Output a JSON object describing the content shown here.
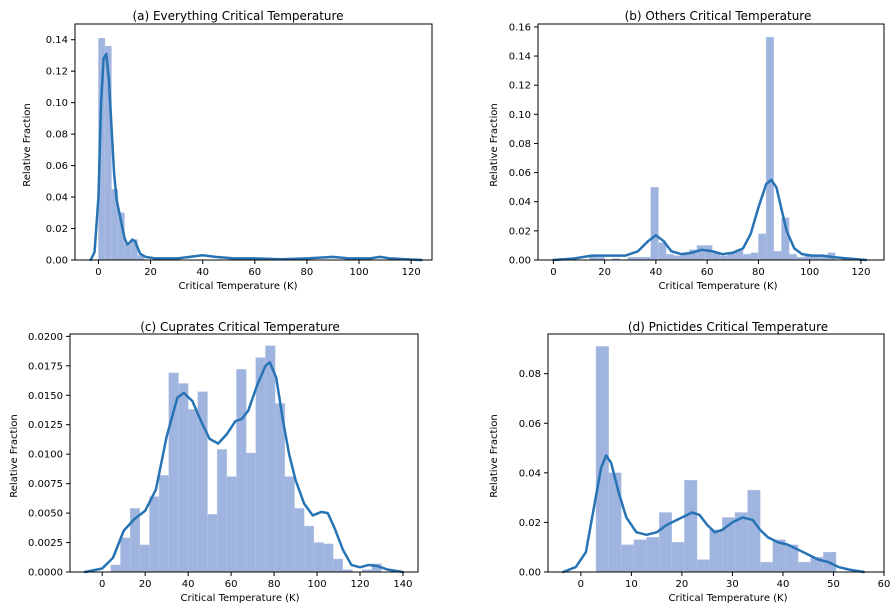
{
  "colors": {
    "bar": "#9fb4df",
    "kde": "#2773b3",
    "axis": "#000000"
  },
  "chart_data": [
    {
      "id": "a",
      "type": "bar",
      "title": "(a) Everything Critical Temperature",
      "xlabel": "Critical Temperature (K)",
      "ylabel": "Relative Fraction",
      "xlim": [
        -9,
        128
      ],
      "ylim": [
        0,
        0.15
      ],
      "xticks": [
        0,
        20,
        40,
        60,
        80,
        100,
        120
      ],
      "yticks": [
        0.0,
        0.02,
        0.04,
        0.06,
        0.08,
        0.1,
        0.12,
        0.14
      ],
      "ytick_decimals": 2,
      "bin_width": 2.5,
      "bins": [
        [
          0,
          0.141
        ],
        [
          2.5,
          0.136
        ],
        [
          5,
          0.045
        ],
        [
          7.5,
          0.03
        ],
        [
          10,
          0.01
        ],
        [
          12.5,
          0.013
        ],
        [
          15,
          0.003
        ]
      ],
      "kde": [
        [
          -3,
          0
        ],
        [
          -1.5,
          0.005
        ],
        [
          0,
          0.04
        ],
        [
          1,
          0.1
        ],
        [
          2,
          0.128
        ],
        [
          3,
          0.131
        ],
        [
          4,
          0.115
        ],
        [
          5,
          0.085
        ],
        [
          6,
          0.055
        ],
        [
          7,
          0.038
        ],
        [
          8,
          0.03
        ],
        [
          9,
          0.022
        ],
        [
          10,
          0.014
        ],
        [
          11,
          0.01
        ],
        [
          12,
          0.011
        ],
        [
          13,
          0.013
        ],
        [
          14,
          0.012
        ],
        [
          15,
          0.008
        ],
        [
          16,
          0.004
        ],
        [
          18,
          0.002
        ],
        [
          22,
          0.001
        ],
        [
          30,
          0.001
        ],
        [
          35,
          0.002
        ],
        [
          40,
          0.003
        ],
        [
          45,
          0.002
        ],
        [
          52,
          0.001
        ],
        [
          60,
          0.001
        ],
        [
          70,
          0.0005
        ],
        [
          80,
          0.001
        ],
        [
          90,
          0.002
        ],
        [
          96,
          0.001
        ],
        [
          104,
          0.001
        ],
        [
          108,
          0.002
        ],
        [
          112,
          0.001
        ],
        [
          118,
          0.0005
        ],
        [
          124,
          0
        ]
      ]
    },
    {
      "id": "b",
      "type": "bar",
      "title": "(b) Others Critical Temperature",
      "xlabel": "Critical Temperature (K)",
      "ylabel": "Relative Fraction",
      "xlim": [
        -6,
        129
      ],
      "ylim": [
        0,
        0.162
      ],
      "xticks": [
        0,
        20,
        40,
        60,
        80,
        100,
        120
      ],
      "yticks": [
        0.0,
        0.02,
        0.04,
        0.06,
        0.08,
        0.1,
        0.12,
        0.14,
        0.16
      ],
      "ytick_decimals": 2,
      "bin_width": 3,
      "bins": [
        [
          14,
          0.003
        ],
        [
          17,
          0.002
        ],
        [
          23,
          0.001
        ],
        [
          29,
          0.002
        ],
        [
          32,
          0.002
        ],
        [
          35,
          0.002
        ],
        [
          38,
          0.05
        ],
        [
          41,
          0.012
        ],
        [
          44,
          0.004
        ],
        [
          47,
          0.003
        ],
        [
          50,
          0.004
        ],
        [
          53,
          0.007
        ],
        [
          56,
          0.01
        ],
        [
          59,
          0.01
        ],
        [
          62,
          0.005
        ],
        [
          65,
          0.003
        ],
        [
          68,
          0.005
        ],
        [
          71,
          0.007
        ],
        [
          74,
          0.004
        ],
        [
          77,
          0.005
        ],
        [
          80,
          0.018
        ],
        [
          83,
          0.153
        ],
        [
          86,
          0.006
        ],
        [
          89,
          0.029
        ],
        [
          92,
          0.004
        ],
        [
          95,
          0.002
        ],
        [
          98,
          0.003
        ],
        [
          101,
          0.003
        ],
        [
          104,
          0.003
        ],
        [
          107,
          0.005
        ]
      ],
      "kde": [
        [
          0,
          0
        ],
        [
          8,
          0.001
        ],
        [
          15,
          0.003
        ],
        [
          22,
          0.003
        ],
        [
          28,
          0.003
        ],
        [
          33,
          0.006
        ],
        [
          37,
          0.013
        ],
        [
          40,
          0.017
        ],
        [
          43,
          0.013
        ],
        [
          46,
          0.006
        ],
        [
          50,
          0.004
        ],
        [
          54,
          0.005
        ],
        [
          58,
          0.007
        ],
        [
          62,
          0.006
        ],
        [
          66,
          0.004
        ],
        [
          70,
          0.005
        ],
        [
          74,
          0.008
        ],
        [
          77,
          0.018
        ],
        [
          80,
          0.036
        ],
        [
          83,
          0.052
        ],
        [
          85,
          0.055
        ],
        [
          87,
          0.05
        ],
        [
          89,
          0.035
        ],
        [
          91,
          0.02
        ],
        [
          94,
          0.008
        ],
        [
          97,
          0.004
        ],
        [
          101,
          0.003
        ],
        [
          105,
          0.003
        ],
        [
          109,
          0.002
        ],
        [
          115,
          0.001
        ],
        [
          122,
          0
        ]
      ]
    },
    {
      "id": "c",
      "type": "bar",
      "title": "(c) Cuprates Critical Temperature",
      "xlabel": "Critical Temperature (K)",
      "ylabel": "Relative Fraction",
      "xlim": [
        -15,
        147
      ],
      "ylim": [
        0,
        0.0202
      ],
      "xticks": [
        0,
        20,
        40,
        60,
        80,
        100,
        120,
        140
      ],
      "yticks": [
        0.0,
        0.0025,
        0.005,
        0.0075,
        0.01,
        0.0125,
        0.015,
        0.0175,
        0.02
      ],
      "ytick_decimals": 4,
      "bin_width": 4.5,
      "bins": [
        [
          4,
          0.0006
        ],
        [
          8.5,
          0.0029
        ],
        [
          13,
          0.0054
        ],
        [
          17.5,
          0.0023
        ],
        [
          22,
          0.0064
        ],
        [
          26.5,
          0.0082
        ],
        [
          31,
          0.0169
        ],
        [
          35.5,
          0.016
        ],
        [
          40,
          0.0138
        ],
        [
          44.5,
          0.0153
        ],
        [
          49,
          0.0049
        ],
        [
          53.5,
          0.0104
        ],
        [
          58,
          0.0081
        ],
        [
          62.5,
          0.0172
        ],
        [
          67,
          0.0101
        ],
        [
          71.5,
          0.0182
        ],
        [
          76,
          0.0192
        ],
        [
          80.5,
          0.0143
        ],
        [
          85,
          0.0081
        ],
        [
          89.5,
          0.0054
        ],
        [
          94,
          0.0039
        ],
        [
          98.5,
          0.0025
        ],
        [
          103,
          0.0024
        ],
        [
          107.5,
          0.0011
        ],
        [
          112,
          0.0002
        ],
        [
          121,
          0.0002
        ],
        [
          125.5,
          0.0007
        ]
      ],
      "kde": [
        [
          -8,
          0
        ],
        [
          0,
          0.0003
        ],
        [
          5,
          0.0012
        ],
        [
          10,
          0.0035
        ],
        [
          15,
          0.0045
        ],
        [
          20,
          0.0052
        ],
        [
          25,
          0.007
        ],
        [
          30,
          0.0115
        ],
        [
          35,
          0.0148
        ],
        [
          38,
          0.0152
        ],
        [
          42,
          0.0145
        ],
        [
          46,
          0.0128
        ],
        [
          50,
          0.0113
        ],
        [
          54,
          0.0109
        ],
        [
          58,
          0.0117
        ],
        [
          62,
          0.0128
        ],
        [
          65,
          0.013
        ],
        [
          68,
          0.0137
        ],
        [
          72,
          0.0158
        ],
        [
          76,
          0.0175
        ],
        [
          78,
          0.0178
        ],
        [
          81,
          0.0165
        ],
        [
          84,
          0.013
        ],
        [
          87,
          0.01
        ],
        [
          90,
          0.0078
        ],
        [
          94,
          0.0058
        ],
        [
          98,
          0.0048
        ],
        [
          102,
          0.0051
        ],
        [
          105,
          0.005
        ],
        [
          108,
          0.0038
        ],
        [
          112,
          0.0019
        ],
        [
          116,
          0.0006
        ],
        [
          120,
          0.0004
        ],
        [
          124,
          0.0006
        ],
        [
          128,
          0.0005
        ],
        [
          133,
          0.0002
        ],
        [
          140,
          0
        ]
      ]
    },
    {
      "id": "d",
      "type": "bar",
      "title": "(d) Pnictides Critical Temperature",
      "xlabel": "Critical Temperature (K)",
      "ylabel": "Relative Fraction",
      "xlim": [
        -6.5,
        60
      ],
      "ylim": [
        0,
        0.096
      ],
      "xticks": [
        0,
        10,
        20,
        30,
        40,
        50,
        60
      ],
      "yticks": [
        0.0,
        0.02,
        0.04,
        0.06,
        0.08
      ],
      "ytick_decimals": 2,
      "bin_width": 2.5,
      "bins": [
        [
          3,
          0.091
        ],
        [
          5.5,
          0.04
        ],
        [
          8,
          0.011
        ],
        [
          10.5,
          0.013
        ],
        [
          13,
          0.014
        ],
        [
          15.5,
          0.024
        ],
        [
          18,
          0.012
        ],
        [
          20.5,
          0.037
        ],
        [
          23,
          0.005
        ],
        [
          25.5,
          0.017
        ],
        [
          28,
          0.022
        ],
        [
          30.5,
          0.024
        ],
        [
          33,
          0.033
        ],
        [
          35.5,
          0.004
        ],
        [
          38,
          0.013
        ],
        [
          40.5,
          0.011
        ],
        [
          43,
          0.004
        ],
        [
          45.5,
          0.006
        ],
        [
          48,
          0.008
        ]
      ],
      "kde": [
        [
          -3.5,
          0
        ],
        [
          -1,
          0.002
        ],
        [
          1,
          0.008
        ],
        [
          2.5,
          0.025
        ],
        [
          4,
          0.042
        ],
        [
          5,
          0.047
        ],
        [
          6,
          0.044
        ],
        [
          7.5,
          0.032
        ],
        [
          9,
          0.022
        ],
        [
          11,
          0.016
        ],
        [
          13,
          0.015
        ],
        [
          15,
          0.016
        ],
        [
          17,
          0.019
        ],
        [
          20,
          0.022
        ],
        [
          22,
          0.024
        ],
        [
          23.5,
          0.023
        ],
        [
          25,
          0.019
        ],
        [
          26.5,
          0.016
        ],
        [
          28,
          0.017
        ],
        [
          30,
          0.02
        ],
        [
          32,
          0.022
        ],
        [
          34,
          0.021
        ],
        [
          35.5,
          0.017
        ],
        [
          37,
          0.014
        ],
        [
          39,
          0.012
        ],
        [
          41,
          0.011
        ],
        [
          43,
          0.009
        ],
        [
          45,
          0.007
        ],
        [
          47,
          0.005
        ],
        [
          49,
          0.004
        ],
        [
          51,
          0.002
        ],
        [
          53,
          0.001
        ],
        [
          56,
          0
        ]
      ]
    }
  ]
}
